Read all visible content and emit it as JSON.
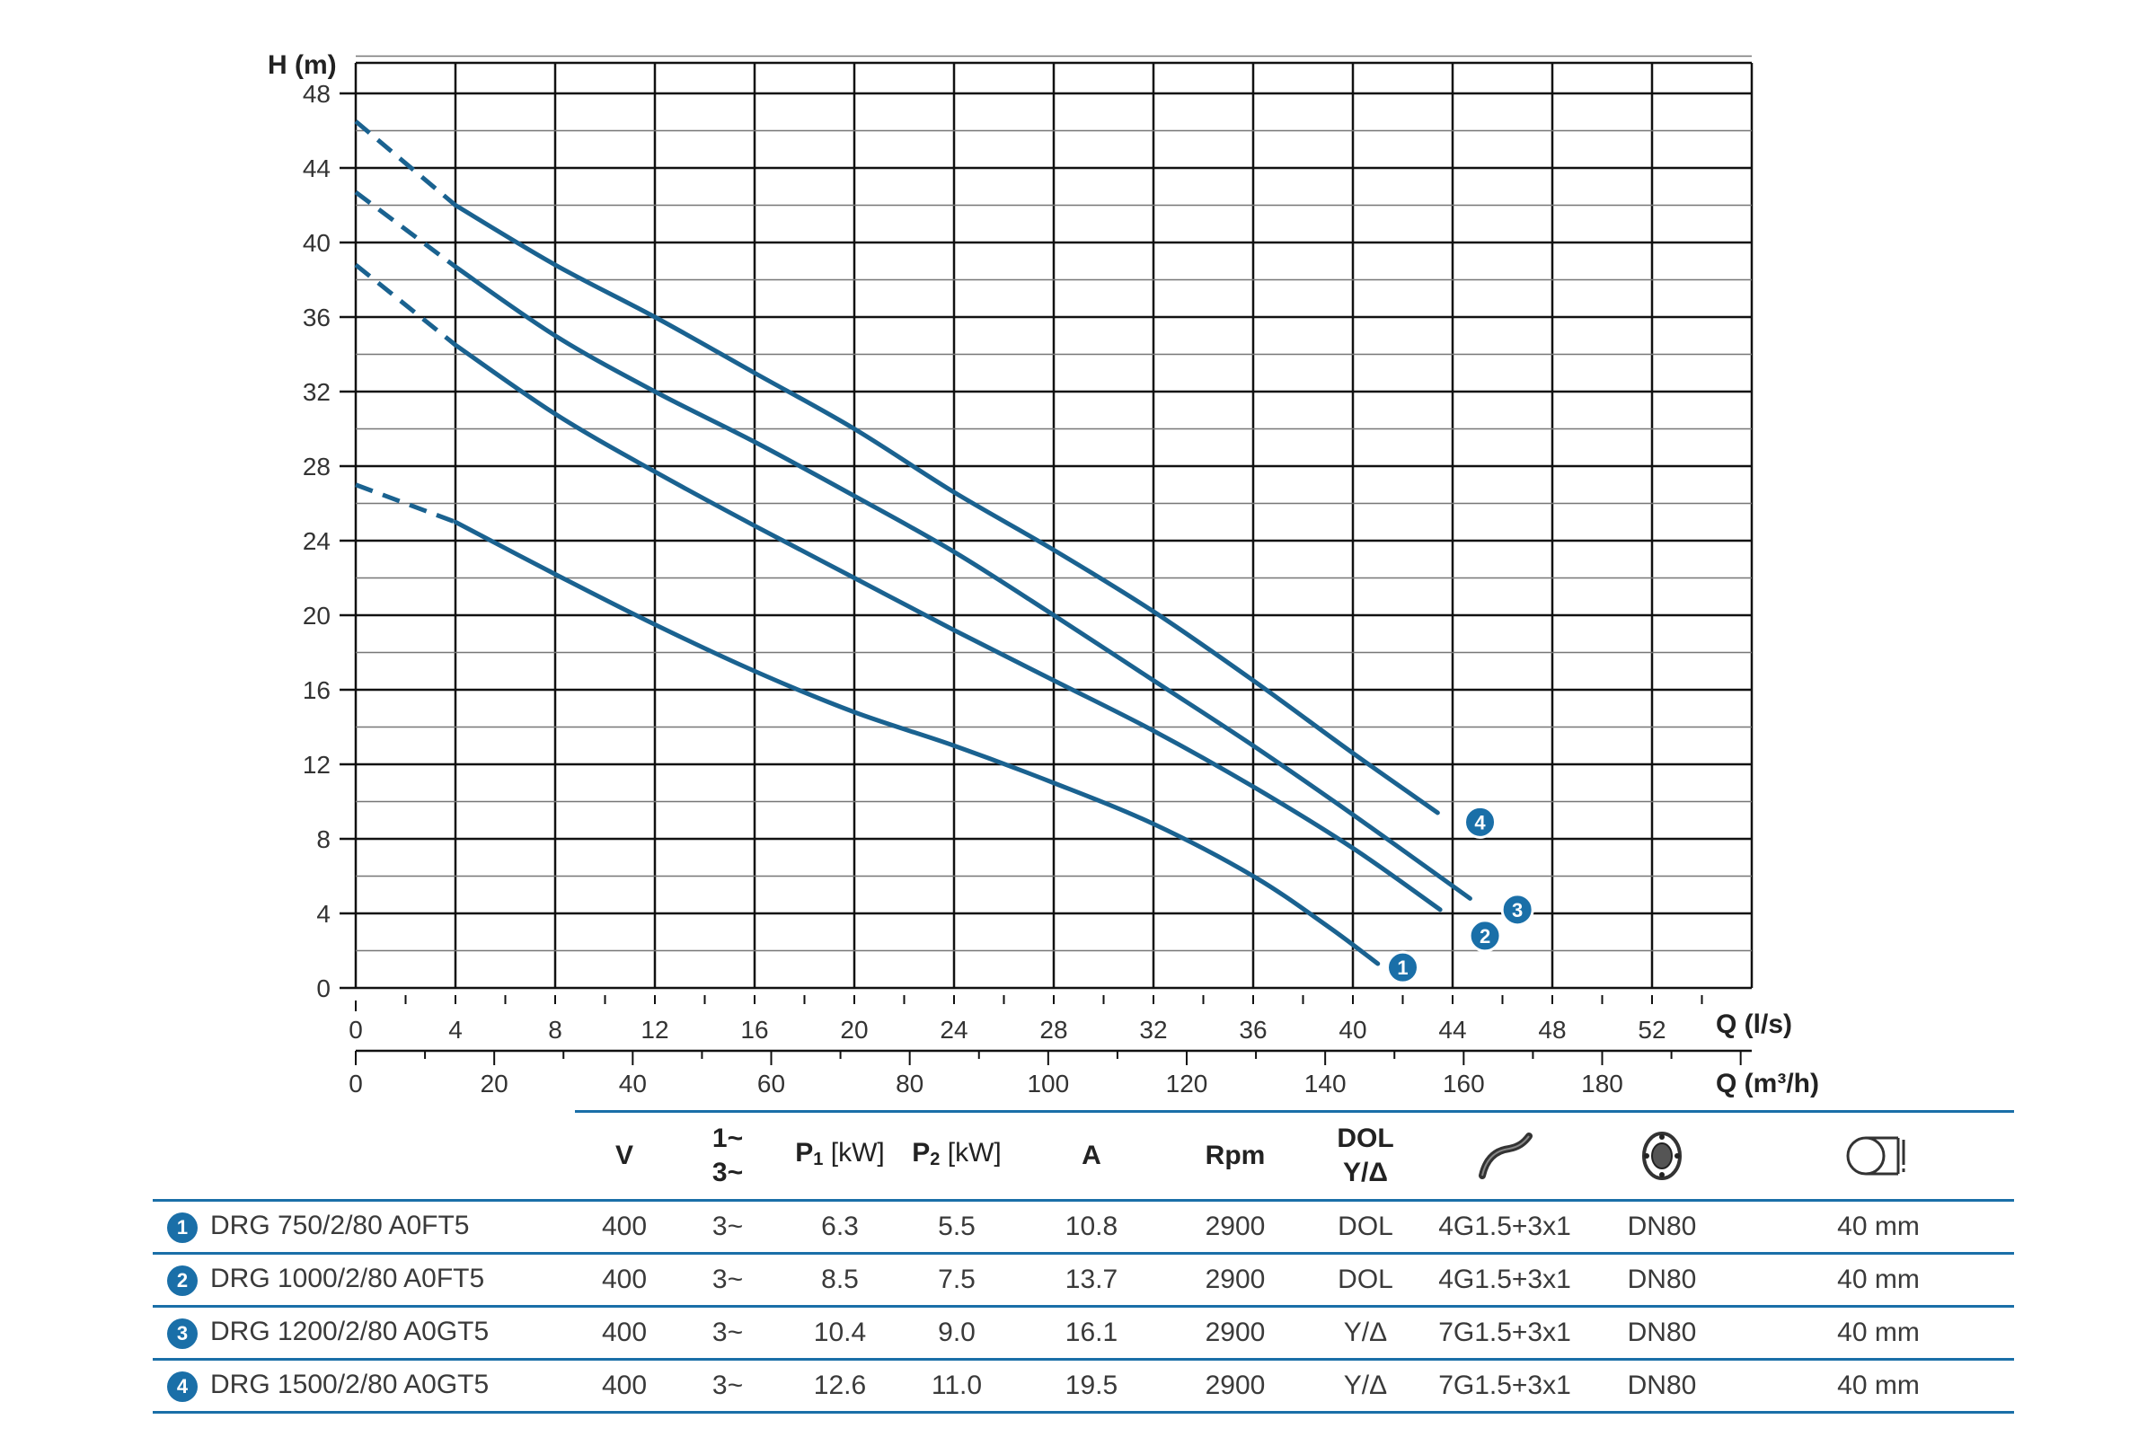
{
  "chart_data": {
    "type": "line",
    "ylabel": "H (m)",
    "xlabel": "Q (l/s)",
    "x2label": "Q (m³/h)",
    "ylim": [
      0,
      48
    ],
    "xlim": [
      0,
      56
    ],
    "x2lim": [
      0,
      201.6
    ],
    "yticks": [
      "0",
      "4",
      "8",
      "12",
      "16",
      "20",
      "24",
      "28",
      "32",
      "36",
      "40",
      "44",
      "48"
    ],
    "xticks": [
      "0",
      "4",
      "8",
      "12",
      "16",
      "20",
      "24",
      "28",
      "32",
      "36",
      "40",
      "44",
      "48",
      "52"
    ],
    "x2ticks": [
      "0",
      "20",
      "40",
      "60",
      "80",
      "100",
      "120",
      "140",
      "160",
      "180"
    ],
    "grid": true,
    "line_color": "#1a6290",
    "badge_color": "#1a6fa8",
    "series": [
      {
        "name": "1",
        "dashed": [
          [
            0,
            27.0
          ],
          [
            4,
            25.0
          ]
        ],
        "values": [
          [
            4,
            25.0
          ],
          [
            8,
            22.2
          ],
          [
            12,
            19.5
          ],
          [
            16,
            17.0
          ],
          [
            20,
            14.8
          ],
          [
            24,
            13.0
          ],
          [
            28,
            11.0
          ],
          [
            32,
            8.8
          ],
          [
            36,
            6.0
          ],
          [
            39,
            3.3
          ],
          [
            41,
            1.3
          ]
        ]
      },
      {
        "name": "2",
        "dashed": [
          [
            0,
            38.8
          ],
          [
            4,
            34.5
          ]
        ],
        "values": [
          [
            4,
            34.5
          ],
          [
            8,
            30.8
          ],
          [
            12,
            27.7
          ],
          [
            16,
            24.8
          ],
          [
            20,
            22.0
          ],
          [
            24,
            19.2
          ],
          [
            28,
            16.5
          ],
          [
            32,
            13.8
          ],
          [
            36,
            10.8
          ],
          [
            40,
            7.5
          ],
          [
            43.5,
            4.2
          ]
        ]
      },
      {
        "name": "3",
        "dashed": [
          [
            0,
            42.7
          ],
          [
            4,
            38.7
          ]
        ],
        "values": [
          [
            4,
            38.7
          ],
          [
            8,
            35.0
          ],
          [
            12,
            32.0
          ],
          [
            16,
            29.3
          ],
          [
            20,
            26.4
          ],
          [
            24,
            23.4
          ],
          [
            28,
            20.0
          ],
          [
            32,
            16.5
          ],
          [
            36,
            13.0
          ],
          [
            40,
            9.3
          ],
          [
            44.7,
            4.8
          ]
        ]
      },
      {
        "name": "4",
        "dashed": [
          [
            0,
            46.5
          ],
          [
            4,
            42.0
          ]
        ],
        "values": [
          [
            4,
            42.0
          ],
          [
            8,
            38.8
          ],
          [
            12,
            36.0
          ],
          [
            16,
            33.0
          ],
          [
            20,
            30.0
          ],
          [
            24,
            26.6
          ],
          [
            28,
            23.5
          ],
          [
            32,
            20.2
          ],
          [
            36,
            16.5
          ],
          [
            40,
            12.6
          ],
          [
            43.4,
            9.4
          ]
        ]
      }
    ],
    "badges": [
      {
        "label": "1",
        "x": 42.0,
        "y": 1.1
      },
      {
        "label": "2",
        "x": 45.3,
        "y": 2.8
      },
      {
        "label": "3",
        "x": 46.6,
        "y": 4.2
      },
      {
        "label": "4",
        "x": 45.1,
        "y": 8.9
      }
    ]
  },
  "table": {
    "headers": {
      "voltage": "V",
      "phase_top": "1~",
      "phase_bottom": "3~",
      "p1_main": "P",
      "p1_sub": "1",
      "p1_unit": " [kW]",
      "p2_main": "P",
      "p2_sub": "2",
      "p2_unit": " [kW]",
      "current": "A",
      "rpm": "Rpm",
      "start_top": "DOL",
      "start_bottom": "Y/Δ",
      "cable_icon": "cable-icon",
      "flange_icon": "flange-icon",
      "passage_icon": "solid-passage-icon"
    },
    "rows": [
      {
        "num": "1",
        "model": "DRG 750/2/80 A0FT5",
        "v": "400",
        "phase": "3~",
        "p1": "6.3",
        "p2": "5.5",
        "a": "10.8",
        "rpm": "2900",
        "start": "DOL",
        "cable": "4G1.5+3x1",
        "dn": "DN80",
        "passage": "40 mm"
      },
      {
        "num": "2",
        "model": "DRG 1000/2/80 A0FT5",
        "v": "400",
        "phase": "3~",
        "p1": "8.5",
        "p2": "7.5",
        "a": "13.7",
        "rpm": "2900",
        "start": "DOL",
        "cable": "4G1.5+3x1",
        "dn": "DN80",
        "passage": "40 mm"
      },
      {
        "num": "3",
        "model": "DRG 1200/2/80 A0GT5",
        "v": "400",
        "phase": "3~",
        "p1": "10.4",
        "p2": "9.0",
        "a": "16.1",
        "rpm": "2900",
        "start": "Y/Δ",
        "cable": "7G1.5+3x1",
        "dn": "DN80",
        "passage": "40 mm"
      },
      {
        "num": "4",
        "model": "DRG 1500/2/80 A0GT5",
        "v": "400",
        "phase": "3~",
        "p1": "12.6",
        "p2": "11.0",
        "a": "19.5",
        "rpm": "2900",
        "start": "Y/Δ",
        "cable": "7G1.5+3x1",
        "dn": "DN80",
        "passage": "40 mm"
      }
    ]
  }
}
